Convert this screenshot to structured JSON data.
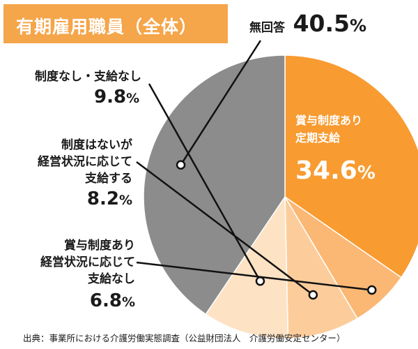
{
  "title": "有期雇用職員（全体）",
  "source": "出典：事業所における介護労働実態調査（公益財団法人　介護労働安定センター）",
  "colors": {
    "title_bg": "#f5a54a",
    "slice_main": "#f89b31",
    "slice_light1": "#fbb774",
    "slice_light2": "#fccd9b",
    "slice_light3": "#fde2c4",
    "slice_none": "#8c8c8c"
  },
  "chart_data": {
    "type": "pie",
    "title": "有期雇用職員（全体）",
    "slices": [
      {
        "name": "賞与制度あり定期支給",
        "value": 34.6,
        "label_lines": [
          "賞与制度あり",
          "定期支給"
        ],
        "value_text": "34.6",
        "unit": "%",
        "color": "#f89b31"
      },
      {
        "name": "賞与制度あり経営状況に応じて支給なし",
        "value": 6.8,
        "label_lines": [
          "賞与制度あり",
          "経営状況に応じて",
          "支給なし"
        ],
        "value_text": "6.8",
        "unit": "%",
        "color": "#fbb774"
      },
      {
        "name": "制度はないが経営状況に応じて支給する",
        "value": 8.2,
        "label_lines": [
          "制度はないが",
          "経営状況に応じて",
          "支給する"
        ],
        "value_text": "8.2",
        "unit": "%",
        "color": "#fccd9b"
      },
      {
        "name": "制度なし・支給なし",
        "value": 9.8,
        "label_lines": [
          "制度なし・支給なし"
        ],
        "value_text": "9.8",
        "unit": "%",
        "color": "#fde2c4"
      },
      {
        "name": "無回答",
        "value": 40.5,
        "label_lines": [
          "無回答"
        ],
        "value_text": "40.5",
        "unit": "%",
        "color": "#8c8c8c"
      }
    ]
  }
}
